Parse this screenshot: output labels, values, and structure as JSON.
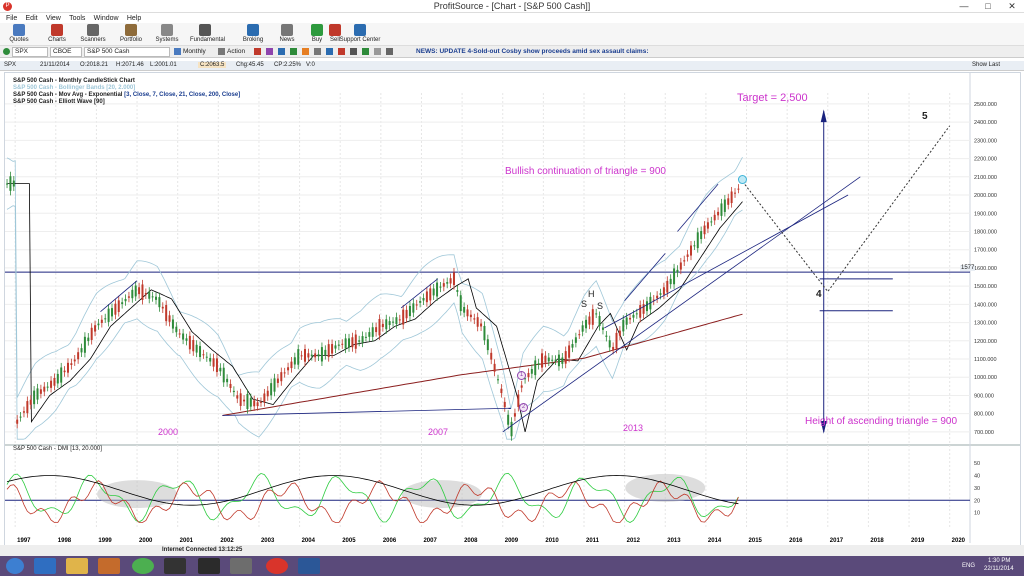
{
  "window": {
    "title": "ProfitSource - [Chart - [S&P 500 Cash]]",
    "app_icon": "ps-logo-icon",
    "minimize": "—",
    "maximize": "□",
    "close": "✕"
  },
  "menu": [
    "File",
    "Edit",
    "View",
    "Tools",
    "Window",
    "Help"
  ],
  "toolbar": [
    {
      "label": "Quotes",
      "icon": "quotes-icon",
      "color": "#4a7abf"
    },
    {
      "label": "Charts",
      "icon": "charts-icon",
      "color": "#c0392b"
    },
    {
      "label": "Scanners",
      "icon": "scanners-icon",
      "color": "#666666"
    },
    {
      "label": "Portfolio",
      "icon": "portfolio-icon",
      "color": "#8e6b3a"
    },
    {
      "label": "Systems",
      "icon": "systems-icon",
      "color": "#888888"
    },
    {
      "label": "Fundamental",
      "icon": "fundamental-icon",
      "color": "#555555"
    },
    {
      "label": "Broking",
      "icon": "broking-icon",
      "color": "#2b6cb0"
    },
    {
      "label": "News",
      "icon": "news-icon",
      "color": "#777777"
    },
    {
      "label": "Buy",
      "icon": "buy-icon",
      "color": "#2e9a3e"
    },
    {
      "label": "Sell",
      "icon": "sell-icon",
      "color": "#c0392b"
    },
    {
      "label": "Support Center",
      "icon": "help-icon",
      "color": "#2b6cb0"
    }
  ],
  "symbol_bar": {
    "symbol": "SPX",
    "exchange": "CBOE",
    "name": "S&P 500 Cash",
    "period": "Monthly",
    "action": "Action",
    "news": "NEWS: UPDATE 4-Sold-out Cosby show proceeds amid sex assault claims:"
  },
  "header": {
    "code": "SPX",
    "date": "21/11/2014",
    "open": "O:2018.21",
    "high": "H:2071.46",
    "low": "L:2001.01",
    "close": "C:2063.5",
    "change": "Chg:45.45",
    "change_pct": "CP:2.25%",
    "volume": "V:0",
    "show_last": "Show Last"
  },
  "legend": [
    {
      "text": "S&P 500 Cash - Monthly CandleStick Chart",
      "color": "#000000"
    },
    {
      "text": "S&P 500 Cash - Bollinger Bands [20, 2.000]",
      "color": "#9fc7d8"
    },
    {
      "text": "S&P 500 Cash - Mov Avg - Exponential",
      "color": "#000000",
      "params": "[3, Close, 7, Close, 21, Close, 200, Close]"
    },
    {
      "text": "S&P 500 Cash - Elliott Wave [90]",
      "color": "#000000"
    }
  ],
  "indicator_legend": "S&P 500 Cash - DMI [13, 20.000]",
  "annotations": {
    "target": "Target = 2,500",
    "bullish": "Bullish continuation of triangle = 900",
    "height": "Height of ascending triangle = 900",
    "wave5": "5",
    "wave4": "4",
    "wave1": "1",
    "wave2": "2",
    "year2000": "2000",
    "year2007": "2007",
    "year2013": "2013",
    "s1": "S",
    "h": "H",
    "s2": "S",
    "level_line": "1577"
  },
  "chart_data": {
    "type": "candlestick",
    "price_axis": [
      "2500.000",
      "2400.000",
      "2300.000",
      "2200.000",
      "2100.000",
      "2000.000",
      "1900.000",
      "1800.000",
      "1700.000",
      "1600.000",
      "1500.000",
      "1400.000",
      "1300.000",
      "1200.000",
      "1100.000",
      "1000.000",
      "900.000",
      "800.000",
      "700.000"
    ],
    "ylim": [
      650,
      2560
    ],
    "x_years": [
      "1997",
      "1998",
      "1999",
      "2000",
      "2001",
      "2002",
      "2003",
      "2004",
      "2005",
      "2006",
      "2007",
      "2008",
      "2009",
      "2010",
      "2011",
      "2012",
      "2013",
      "2014",
      "2015",
      "2016",
      "2017",
      "2018",
      "2019",
      "2020"
    ],
    "xlim": [
      1996.75,
      2020.5
    ],
    "horizontal_level": 1577,
    "series": [
      {
        "name": "S&P 500 Cash",
        "x": [
          1997,
          1997.5,
          1998,
          1998.5,
          1999,
          1999.5,
          2000,
          2000.5,
          2001,
          2001.5,
          2002,
          2002.5,
          2003,
          2003.5,
          2004,
          2004.5,
          2005,
          2005.5,
          2006,
          2006.5,
          2007,
          2007.5,
          2007.8,
          2008,
          2008.5,
          2009,
          2009.2,
          2009.5,
          2010,
          2010.5,
          2011,
          2011.3,
          2011.7,
          2012,
          2012.5,
          2013,
          2013.5,
          2014,
          2014.5,
          2014.9
        ],
        "y": [
          740,
          900,
          980,
          1100,
          1280,
          1380,
          1480,
          1430,
          1250,
          1150,
          1060,
          880,
          850,
          990,
          1120,
          1120,
          1180,
          1200,
          1280,
          1320,
          1420,
          1500,
          1540,
          1380,
          1280,
          900,
          700,
          980,
          1100,
          1090,
          1280,
          1350,
          1150,
          1300,
          1380,
          1480,
          1650,
          1820,
          1950,
          2063
        ]
      }
    ],
    "indicator": {
      "name": "DMI [13, 20.000]",
      "ylim": [
        0,
        55
      ],
      "ticks": [
        "50",
        "40",
        "30",
        "20",
        "10"
      ]
    }
  },
  "status": {
    "connection": "Internet Connected 13:12:25"
  },
  "tray": {
    "time": "1:30 PM",
    "date": "22/11/2014",
    "lang": "ENG"
  },
  "colors": {
    "candle_up": "#2e8b3a",
    "candle_down": "#c0392b",
    "target_text": "#cc33cc",
    "level_line": "#1a237e"
  }
}
